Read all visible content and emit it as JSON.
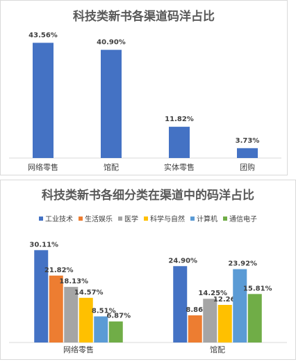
{
  "chart_data": [
    {
      "type": "bar",
      "title": "科技类新书各渠道码洋占比",
      "categories": [
        "网络零售",
        "馆配",
        "实体零售",
        "团购"
      ],
      "values": [
        43.56,
        40.9,
        11.82,
        3.73
      ],
      "data_labels": [
        "43.56%",
        "40.90%",
        "11.82%",
        "3.73%"
      ],
      "color": "#4472c4",
      "ylim": [
        0,
        50
      ],
      "grid": false,
      "legend": "none"
    },
    {
      "type": "bar",
      "title": "科技类新书各细分类在渠道中的码洋占比",
      "categories": [
        "网络零售",
        "馆配"
      ],
      "series": [
        {
          "name": "工业技术",
          "values": [
            30.11,
            24.9
          ],
          "labels": [
            "30.11%",
            "24.90%"
          ],
          "color": "#4472c4"
        },
        {
          "name": "生活娱乐",
          "values": [
            21.82,
            8.86
          ],
          "labels": [
            "21.82%",
            "8.86%"
          ],
          "color": "#ed7d31"
        },
        {
          "name": "医学",
          "values": [
            18.13,
            14.25
          ],
          "labels": [
            "18.13%",
            "14.25%"
          ],
          "color": "#a5a5a5"
        },
        {
          "name": "科学与自然",
          "values": [
            14.57,
            12.26
          ],
          "labels": [
            "14.57%",
            "12.26%"
          ],
          "color": "#ffc000"
        },
        {
          "name": "计算机",
          "values": [
            8.51,
            23.92
          ],
          "labels": [
            "8.51%",
            "23.92%"
          ],
          "color": "#5b9bd5"
        },
        {
          "name": "通信电子",
          "values": [
            6.87,
            15.81
          ],
          "labels": [
            "6.87%",
            "15.81%"
          ],
          "color": "#70ad47"
        }
      ],
      "ylim": [
        0,
        32
      ],
      "grid": false,
      "legend": "top"
    }
  ]
}
